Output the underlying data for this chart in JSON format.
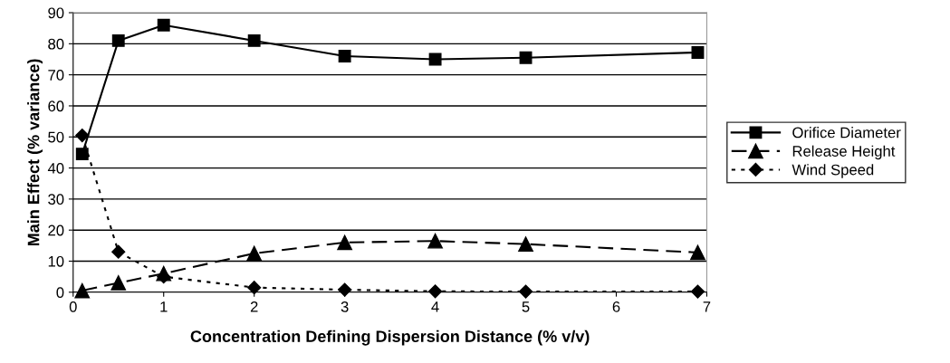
{
  "chart_data": {
    "type": "line",
    "xlabel": "Concentration Defining Dispersion Distance (% v/v)",
    "ylabel": "Main Effect (% variance)",
    "x": [
      0.1,
      0.5,
      1,
      2,
      3,
      4,
      5,
      6.9
    ],
    "series": [
      {
        "name": "Orifice Diameter",
        "color": "#000000",
        "marker": "square",
        "line_style": "solid",
        "values": [
          44.5,
          81,
          86,
          81,
          76,
          75,
          75.5,
          77.2
        ]
      },
      {
        "name": "Release Height",
        "color": "#000000",
        "marker": "triangle",
        "line_style": "dashed",
        "values": [
          0.5,
          3,
          6,
          12.5,
          16,
          16.5,
          15.5,
          12.8
        ]
      },
      {
        "name": "Wind Speed",
        "color": "#000000",
        "marker": "diamond",
        "line_style": "dotted",
        "values": [
          50.5,
          13,
          5,
          1.5,
          0.8,
          0.3,
          0.2,
          0.2
        ]
      }
    ],
    "xlim": [
      0,
      7
    ],
    "xticks": [
      0,
      1,
      2,
      3,
      4,
      5,
      6,
      7
    ],
    "ylim": [
      0,
      90
    ],
    "yticks": [
      0,
      10,
      20,
      30,
      40,
      50,
      60,
      70,
      80,
      90
    ],
    "grid": "y",
    "legend": "right"
  }
}
